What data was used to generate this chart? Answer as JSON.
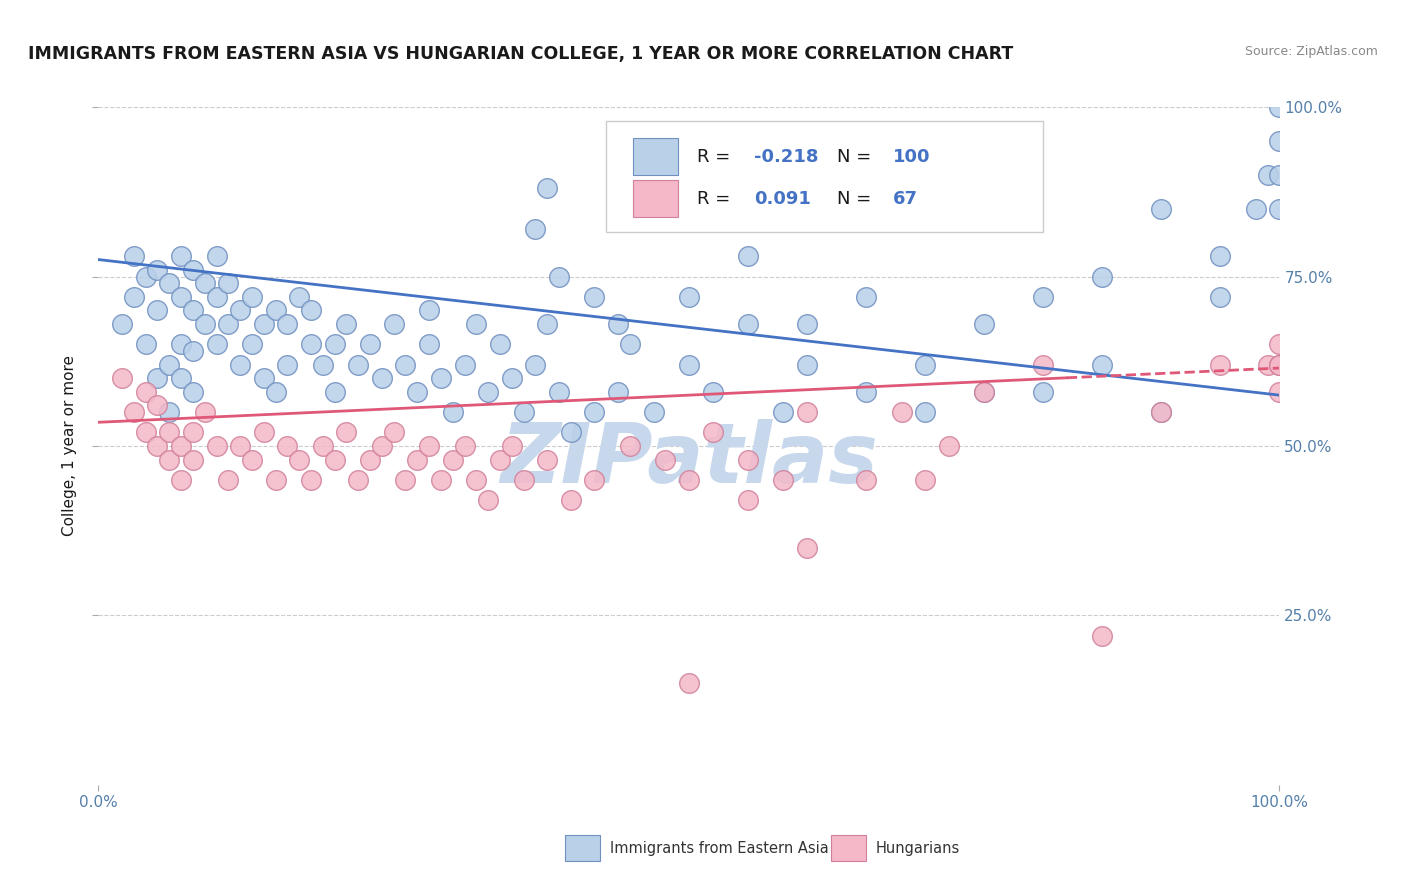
{
  "title": "IMMIGRANTS FROM EASTERN ASIA VS HUNGARIAN COLLEGE, 1 YEAR OR MORE CORRELATION CHART",
  "source_text": "Source: ZipAtlas.com",
  "ylabel": "College, 1 year or more",
  "xlim": [
    0.0,
    1.0
  ],
  "ylim": [
    0.0,
    1.0
  ],
  "ytick_labels": [
    "25.0%",
    "50.0%",
    "75.0%",
    "100.0%"
  ],
  "ytick_positions": [
    0.25,
    0.5,
    0.75,
    1.0
  ],
  "series_blue": {
    "color": "#b8d0e8",
    "edge_color": "#7090c0",
    "trend_color": "#4472c4",
    "trend_y_start": 0.775,
    "trend_y_end": 0.575,
    "R_text": "-0.218",
    "N_text": "100"
  },
  "series_pink": {
    "color": "#f4b8c8",
    "edge_color": "#d08098",
    "trend_color": "#e05878",
    "trend_y_start": 0.535,
    "trend_y_end": 0.615,
    "R_text": "0.091",
    "N_text": "67"
  },
  "watermark": "ZIPatlas",
  "watermark_color": "#c8d8ec",
  "background_color": "#ffffff",
  "grid_color": "#cccccc",
  "title_color": "#1a1a1a",
  "axis_label_color": "#5580aa",
  "legend_text_color": "#1a1a1a",
  "legend_value_color": "#4472c4",
  "blue_scatter_x": [
    0.02,
    0.03,
    0.03,
    0.04,
    0.04,
    0.05,
    0.05,
    0.05,
    0.06,
    0.06,
    0.06,
    0.07,
    0.07,
    0.07,
    0.07,
    0.08,
    0.08,
    0.08,
    0.08,
    0.09,
    0.09,
    0.1,
    0.1,
    0.1,
    0.11,
    0.11,
    0.12,
    0.12,
    0.13,
    0.13,
    0.14,
    0.14,
    0.15,
    0.15,
    0.16,
    0.16,
    0.17,
    0.18,
    0.18,
    0.19,
    0.2,
    0.2,
    0.21,
    0.22,
    0.23,
    0.24,
    0.25,
    0.26,
    0.27,
    0.28,
    0.28,
    0.29,
    0.3,
    0.31,
    0.32,
    0.33,
    0.34,
    0.35,
    0.36,
    0.37,
    0.38,
    0.39,
    0.4,
    0.42,
    0.44,
    0.45,
    0.47,
    0.5,
    0.52,
    0.55,
    0.58,
    0.6,
    0.65,
    0.7,
    0.75,
    0.8,
    0.85,
    0.9,
    0.95,
    0.98,
    0.99,
    1.0,
    1.0,
    1.0,
    0.37,
    0.38,
    0.39,
    0.42,
    0.44,
    0.5,
    0.55,
    0.6,
    0.65,
    0.7,
    0.75,
    0.8,
    0.85,
    0.9,
    0.95,
    1.0
  ],
  "blue_scatter_y": [
    0.68,
    0.72,
    0.78,
    0.65,
    0.75,
    0.6,
    0.7,
    0.76,
    0.55,
    0.62,
    0.74,
    0.6,
    0.65,
    0.72,
    0.78,
    0.58,
    0.64,
    0.7,
    0.76,
    0.68,
    0.74,
    0.65,
    0.72,
    0.78,
    0.68,
    0.74,
    0.62,
    0.7,
    0.65,
    0.72,
    0.6,
    0.68,
    0.58,
    0.7,
    0.62,
    0.68,
    0.72,
    0.65,
    0.7,
    0.62,
    0.58,
    0.65,
    0.68,
    0.62,
    0.65,
    0.6,
    0.68,
    0.62,
    0.58,
    0.65,
    0.7,
    0.6,
    0.55,
    0.62,
    0.68,
    0.58,
    0.65,
    0.6,
    0.55,
    0.62,
    0.68,
    0.58,
    0.52,
    0.55,
    0.58,
    0.65,
    0.55,
    0.62,
    0.58,
    0.68,
    0.55,
    0.62,
    0.58,
    0.55,
    0.68,
    0.58,
    0.62,
    0.55,
    0.72,
    0.85,
    0.9,
    0.85,
    0.9,
    1.0,
    0.82,
    0.88,
    0.75,
    0.72,
    0.68,
    0.72,
    0.78,
    0.68,
    0.72,
    0.62,
    0.58,
    0.72,
    0.75,
    0.85,
    0.78,
    0.95
  ],
  "pink_scatter_x": [
    0.02,
    0.03,
    0.04,
    0.04,
    0.05,
    0.05,
    0.06,
    0.06,
    0.07,
    0.07,
    0.08,
    0.08,
    0.09,
    0.1,
    0.11,
    0.12,
    0.13,
    0.14,
    0.15,
    0.16,
    0.17,
    0.18,
    0.19,
    0.2,
    0.21,
    0.22,
    0.23,
    0.24,
    0.25,
    0.26,
    0.27,
    0.28,
    0.29,
    0.3,
    0.31,
    0.32,
    0.33,
    0.34,
    0.35,
    0.36,
    0.38,
    0.4,
    0.42,
    0.45,
    0.48,
    0.5,
    0.52,
    0.55,
    0.58,
    0.6,
    0.65,
    0.68,
    0.7,
    0.72,
    0.75,
    0.8,
    0.85,
    0.9,
    0.95,
    0.99,
    1.0,
    1.0,
    1.0,
    1.0,
    0.5,
    0.55,
    0.6
  ],
  "pink_scatter_y": [
    0.6,
    0.55,
    0.52,
    0.58,
    0.5,
    0.56,
    0.48,
    0.52,
    0.45,
    0.5,
    0.48,
    0.52,
    0.55,
    0.5,
    0.45,
    0.5,
    0.48,
    0.52,
    0.45,
    0.5,
    0.48,
    0.45,
    0.5,
    0.48,
    0.52,
    0.45,
    0.48,
    0.5,
    0.52,
    0.45,
    0.48,
    0.5,
    0.45,
    0.48,
    0.5,
    0.45,
    0.42,
    0.48,
    0.5,
    0.45,
    0.48,
    0.42,
    0.45,
    0.5,
    0.48,
    0.45,
    0.52,
    0.48,
    0.45,
    0.55,
    0.45,
    0.55,
    0.45,
    0.5,
    0.58,
    0.62,
    0.22,
    0.55,
    0.62,
    0.62,
    0.58,
    0.62,
    0.65,
    0.62,
    0.15,
    0.42,
    0.35
  ]
}
